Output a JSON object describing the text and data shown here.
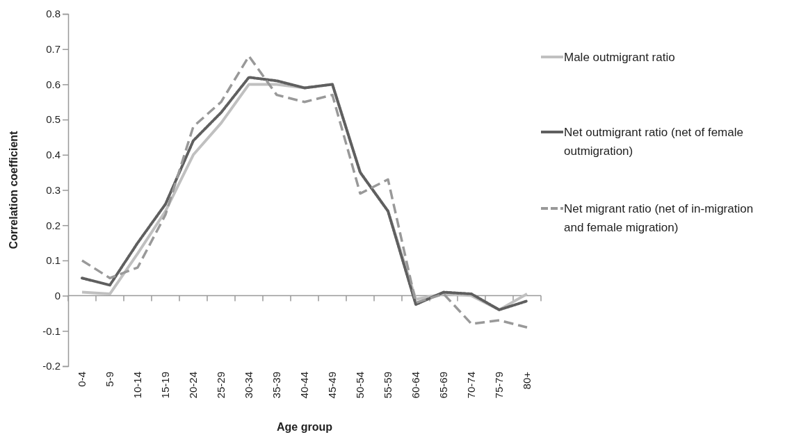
{
  "chart_data": {
    "type": "line",
    "xlabel": "Age group",
    "ylabel": "Correlation coefficient",
    "categories": [
      "0-4",
      "5-9",
      "10-14",
      "15-19",
      "20-24",
      "25-29",
      "30-34",
      "35-39",
      "40-44",
      "45-49",
      "50-54",
      "55-59",
      "60-64",
      "65-69",
      "70-74",
      "75-79",
      "80+"
    ],
    "ylim": [
      -0.2,
      0.8
    ],
    "yticks": [
      {
        "value": -0.2,
        "label": "-0.2"
      },
      {
        "value": -0.1,
        "label": "-0.1"
      },
      0,
      0.1,
      0.2,
      0.3,
      0.4,
      0.5,
      0.6,
      0.7,
      0.8
    ],
    "legend": "right",
    "marker": "none",
    "series": [
      {
        "name": "Male outmigrant ratio",
        "color": "#c0c0c0",
        "line_style": "solid",
        "values": [
          0.01,
          0.005,
          0.12,
          0.24,
          0.4,
          0.49,
          0.6,
          0.6,
          0.59,
          0.6,
          0.35,
          0.24,
          -0.01,
          0.005,
          0.0,
          -0.04,
          0.005
        ]
      },
      {
        "name": "Net outmigrant ratio (net of female outmigration)",
        "color": "#5f5f5f",
        "line_style": "dotted",
        "values": [
          0.05,
          0.03,
          0.15,
          0.26,
          0.44,
          0.52,
          0.62,
          0.61,
          0.59,
          0.6,
          0.35,
          0.24,
          -0.025,
          0.01,
          0.005,
          -0.04,
          -0.015
        ]
      },
      {
        "name": "Net migrant ratio (net of in-migration and female migration)",
        "color": "#999999",
        "line_style": "dashed",
        "values": [
          0.1,
          0.05,
          0.08,
          0.23,
          0.48,
          0.55,
          0.68,
          0.57,
          0.55,
          0.57,
          0.29,
          0.33,
          -0.02,
          0.005,
          -0.08,
          -0.07,
          -0.09
        ]
      }
    ]
  }
}
